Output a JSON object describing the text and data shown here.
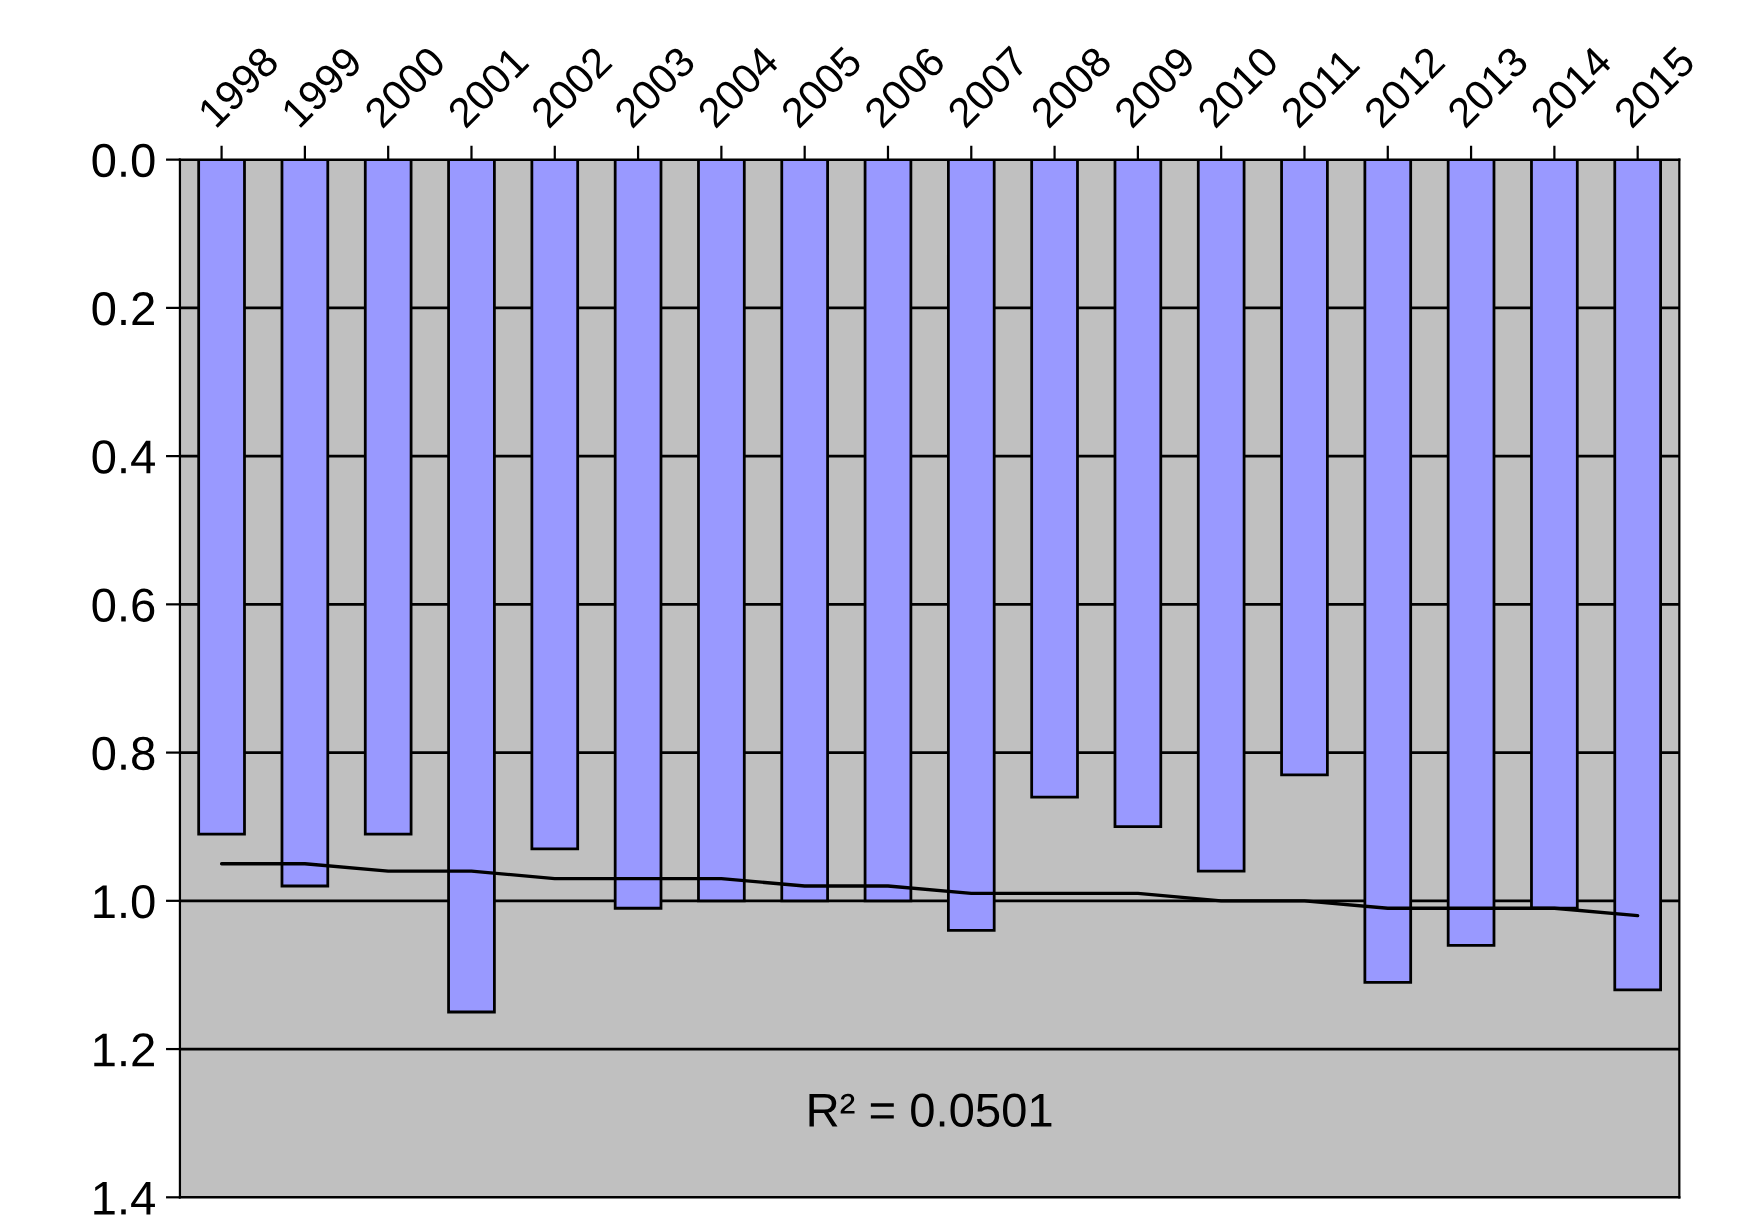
{
  "chart_data": {
    "type": "bar",
    "categories": [
      "1998",
      "1999",
      "2000",
      "2001",
      "2002",
      "2003",
      "2004",
      "2005",
      "2006",
      "2007",
      "2008",
      "2009",
      "2010",
      "2011",
      "2012",
      "2013",
      "2014",
      "2015"
    ],
    "series": [
      {
        "color": "#9999ff",
        "values": [
          0.91,
          0.98,
          0.91,
          1.15,
          0.93,
          1.01,
          1.0,
          1.0,
          1.0,
          1.04,
          0.86,
          0.9,
          0.96,
          0.83,
          1.11,
          1.06,
          1.01,
          1.12
        ]
      },
      {
        "type": "line",
        "color": "#000000",
        "values": [
          0.95,
          0.95,
          0.96,
          0.96,
          0.97,
          0.97,
          0.97,
          0.98,
          0.98,
          0.99,
          0.99,
          0.99,
          1.0,
          1.0,
          1.01,
          1.01,
          1.01,
          1.02
        ]
      }
    ],
    "ylim": [
      1.4,
      0.0
    ],
    "yticks": [
      {
        "value": 0,
        "label": "0.0"
      },
      {
        "value": 0.2,
        "label": "0.2"
      },
      {
        "value": 0.4,
        "label": "0.4"
      },
      {
        "value": 0.6,
        "label": "0.6"
      },
      {
        "value": 0.8,
        "label": "0.8"
      },
      {
        "value": 1.0,
        "label": "1.0"
      },
      {
        "value": 1.2,
        "label": "1.2"
      },
      {
        "value": 1.4,
        "label": "1.4"
      }
    ],
    "grid": "y",
    "annotations": [
      "R² = 0.0501"
    ]
  }
}
